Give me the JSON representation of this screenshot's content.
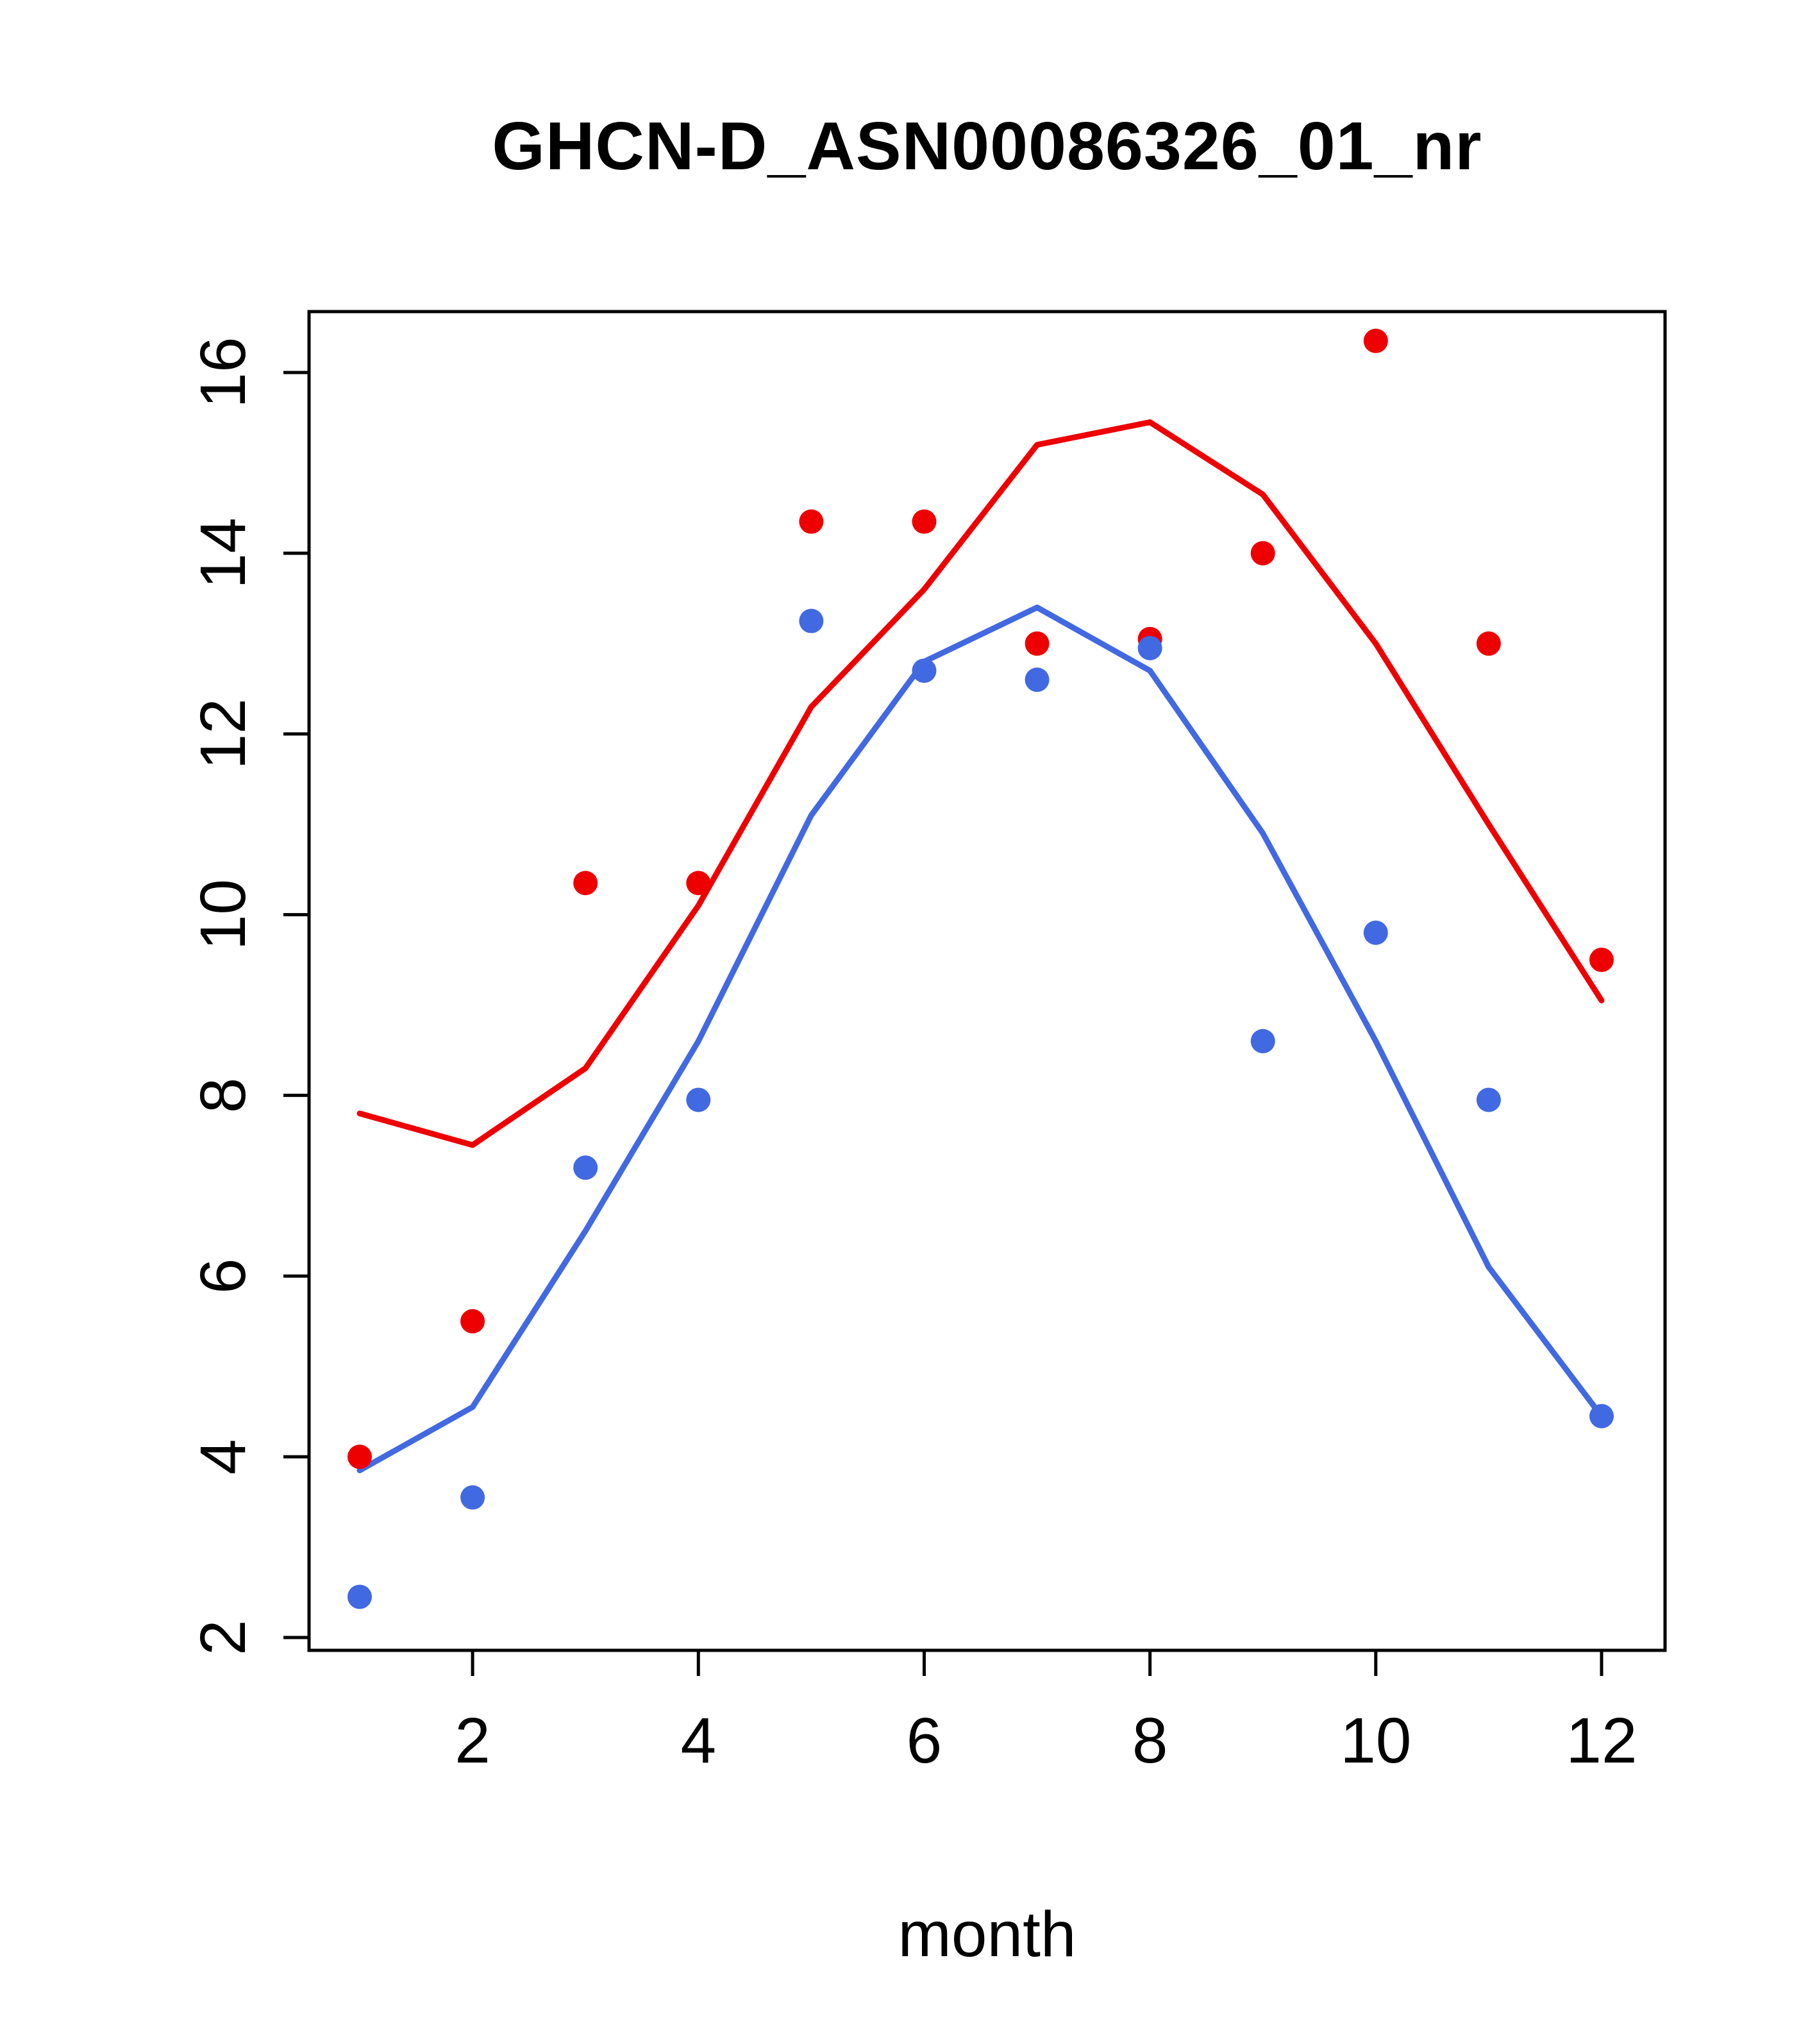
{
  "page": {
    "background_color": "#ffffff"
  },
  "chart_data": {
    "type": "scatter",
    "title": "GHCN-D_ASN00086326_01_nr",
    "xlabel": "month",
    "ylabel": "",
    "x": [
      1,
      2,
      3,
      4,
      5,
      6,
      7,
      8,
      9,
      10,
      11,
      12
    ],
    "xlim": [
      1,
      12
    ],
    "ylim": [
      2,
      16
    ],
    "x_ticks": [
      2,
      4,
      6,
      8,
      10,
      12
    ],
    "y_ticks": [
      2,
      4,
      6,
      8,
      10,
      12,
      14,
      16
    ],
    "grid": false,
    "legend": "none",
    "series": [
      {
        "name": "red-line",
        "kind": "line",
        "color": "#ee0000",
        "values": [
          7.8,
          7.45,
          8.3,
          10.1,
          12.3,
          13.6,
          15.2,
          15.45,
          14.65,
          13.0,
          11.0,
          9.05
        ]
      },
      {
        "name": "blue-line",
        "kind": "line",
        "color": "#4169e1",
        "values": [
          3.85,
          4.55,
          6.5,
          8.6,
          11.1,
          12.8,
          13.4,
          12.7,
          10.9,
          8.6,
          6.1,
          4.45
        ]
      },
      {
        "name": "red-points",
        "kind": "points",
        "color": "#ee0000",
        "values": [
          4.0,
          5.5,
          10.35,
          10.35,
          14.35,
          14.35,
          13.0,
          13.05,
          14.0,
          16.35,
          13.0,
          9.5
        ]
      },
      {
        "name": "blue-points",
        "kind": "points",
        "color": "#4169e1",
        "values": [
          2.45,
          3.55,
          7.2,
          7.95,
          13.25,
          12.7,
          12.6,
          12.95,
          8.6,
          9.8,
          7.95,
          4.45
        ]
      }
    ],
    "axis_color": "#000000"
  }
}
